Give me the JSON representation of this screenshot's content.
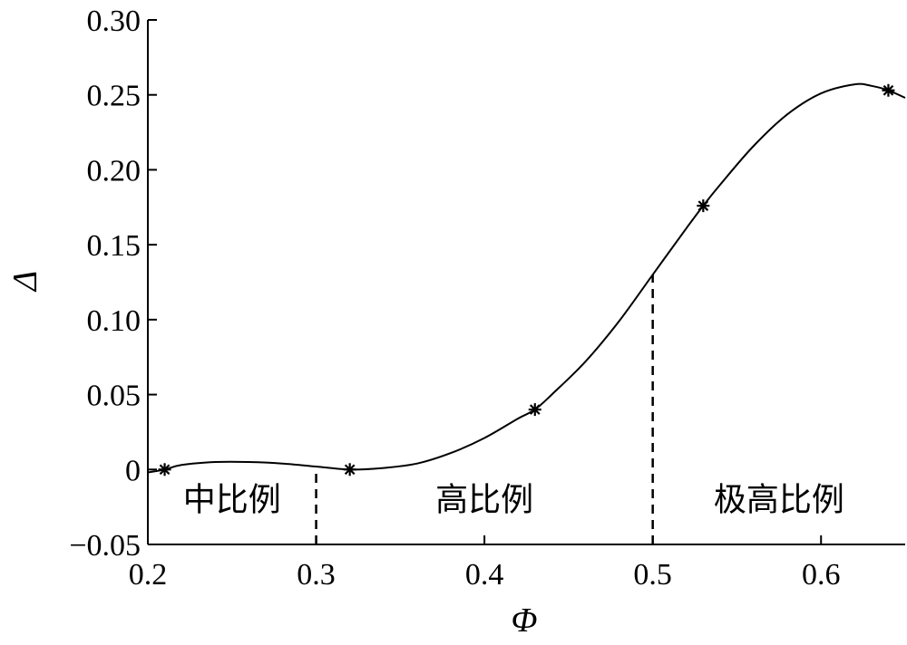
{
  "chart_data": {
    "type": "line",
    "xlabel": "Φ",
    "ylabel": "Δ",
    "xlim": [
      0.2,
      0.65
    ],
    "ylim": [
      -0.05,
      0.3
    ],
    "x_ticks": [
      0.2,
      0.3,
      0.4,
      0.5,
      0.6
    ],
    "x_tick_labels": [
      "0.2",
      "0.3",
      "0.4",
      "0.5",
      "0.6"
    ],
    "y_ticks": [
      -0.05,
      0,
      0.05,
      0.1,
      0.15,
      0.2,
      0.25,
      0.3
    ],
    "y_tick_labels": [
      "−0.05",
      "0",
      "0.05",
      "0.10",
      "0.15",
      "0.20",
      "0.25",
      "0.30"
    ],
    "grid": false,
    "series": [
      {
        "style": "solid-curve",
        "x": [
          0.2,
          0.21,
          0.22,
          0.24,
          0.26,
          0.28,
          0.3,
          0.32,
          0.34,
          0.36,
          0.38,
          0.4,
          0.42,
          0.43,
          0.44,
          0.46,
          0.48,
          0.5,
          0.52,
          0.53,
          0.54,
          0.56,
          0.58,
          0.6,
          0.62,
          0.63,
          0.64,
          0.65
        ],
        "values": [
          -0.002,
          0.0,
          0.003,
          0.005,
          0.005,
          0.004,
          0.002,
          0.0,
          0.001,
          0.004,
          0.011,
          0.021,
          0.034,
          0.04,
          0.05,
          0.072,
          0.099,
          0.13,
          0.161,
          0.176,
          0.19,
          0.216,
          0.237,
          0.251,
          0.257,
          0.256,
          0.253,
          0.248
        ]
      },
      {
        "style": "asterisk-markers",
        "x": [
          0.21,
          0.32,
          0.43,
          0.53,
          0.64
        ],
        "values": [
          0.0,
          0.0,
          0.04,
          0.176,
          0.253
        ]
      }
    ],
    "dividers": [
      {
        "x": 0.3,
        "y_from": -0.05,
        "y_to": 0.002
      },
      {
        "x": 0.5,
        "y_from": -0.05,
        "y_to": 0.13
      }
    ],
    "regions": [
      {
        "label": "中比例",
        "x": 0.25,
        "y": -0.02
      },
      {
        "label": "高比例",
        "x": 0.4,
        "y": -0.02
      },
      {
        "label": "极高比例",
        "x": 0.575,
        "y": -0.02
      }
    ]
  }
}
